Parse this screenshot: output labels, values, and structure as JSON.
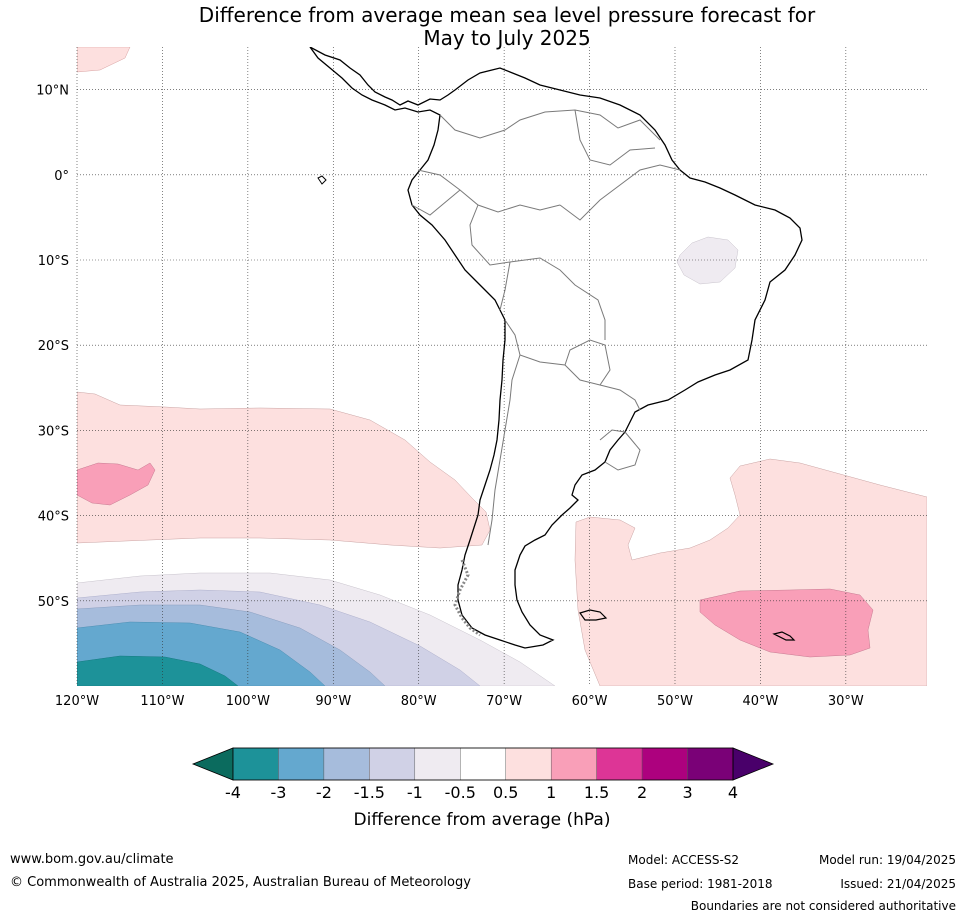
{
  "title_line1": "Difference from average mean sea level pressure forecast for",
  "title_line2": "May to July 2025",
  "map": {
    "lat_labels": [
      "10°N",
      "0°",
      "10°S",
      "20°S",
      "30°S",
      "40°S",
      "50°S"
    ],
    "lon_labels": [
      "120°W",
      "110°W",
      "100°W",
      "90°W",
      "80°W",
      "70°W",
      "60°W",
      "50°W",
      "40°W",
      "30°W"
    ],
    "lat_values": [
      10,
      0,
      -10,
      -20,
      -30,
      -40,
      -50
    ],
    "lon_values": [
      -120,
      -110,
      -100,
      -90,
      -80,
      -70,
      -60,
      -50,
      -40,
      -30
    ],
    "extent": {
      "lon_min": -120,
      "lon_max": -20.5,
      "lat_min": -60,
      "lat_max": 15
    }
  },
  "colorbar": {
    "ticks": [
      "-4",
      "-3",
      "-2",
      "-1.5",
      "-1",
      "-0.5",
      "0.5",
      "1",
      "1.5",
      "2",
      "3",
      "4"
    ],
    "colors": [
      "#1d9299",
      "#64a8cf",
      "#a6bcdc",
      "#d0d1e6",
      "#efebf1",
      "#ffffff",
      "#fde0df",
      "#f99fb8",
      "#dd3596",
      "#ad017e",
      "#7a0177"
    ],
    "under_color": "#0b6b5e",
    "over_color": "#49006a",
    "label": "Difference from average (hPa)"
  },
  "footer": {
    "url": "www.bom.gov.au/climate",
    "copyright": "© Commonwealth of Australia 2025, Australian Bureau of Meteorology",
    "model": "Model: ACCESS-S2",
    "base_period": "Base period: 1981-2018",
    "model_run": "Model run: 19/04/2025",
    "issued": "Issued: 21/04/2025",
    "disclaimer": "Boundaries are not considered authoritative"
  }
}
